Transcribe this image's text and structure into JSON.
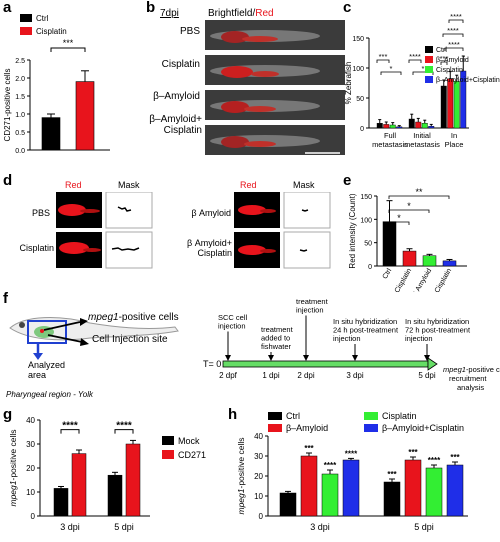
{
  "panels": {
    "a": "a",
    "b": "b",
    "c": "c",
    "d": "d",
    "e": "e",
    "f": "f",
    "g": "g",
    "h": "h"
  },
  "panel_b": {
    "timepoint": "7dpi",
    "title_bf": "Brightfield/",
    "title_red": "Red",
    "rows": [
      "PBS",
      "Cisplatin",
      "β–Amyloid",
      "β–Amyloid+ Cisplatin"
    ],
    "colors": {
      "red": "#e8141c",
      "bg": "#3a3a3a"
    }
  },
  "panel_d": {
    "red": "Red",
    "mask": "Mask",
    "left_rows": [
      "PBS",
      "Cisplatin"
    ],
    "right_rows": [
      "β Amyloid",
      "β Amyloid+ Cisplatin"
    ]
  },
  "panel_f": {
    "pharyngeal": "Pharyngeal region - Yolk",
    "analyzed": "Analyzed area",
    "mpeg": "mpeg1",
    "mpeg_suffix": "-positive cells",
    "injection_site": "Cell Injection site",
    "t0": "T= 0",
    "events": [
      {
        "label": "SCC cell injection",
        "tick": "2 dpf"
      },
      {
        "label": "treatment added to fishwater",
        "tick": "1 dpi"
      },
      {
        "label": "treatment injection",
        "tick": "2 dpi"
      },
      {
        "label": "In situ hybridization 24 h post-treatment injection",
        "tick": "3 dpi"
      },
      {
        "label": "In situ hybridization 72 h post-treatment injection",
        "tick": "5 dpi"
      }
    ],
    "outcome_italic": "mpeg1",
    "outcome_rest": "-positive cell recruitment analysis"
  },
  "chart_data": [
    {
      "id": "a",
      "type": "bar",
      "categories": [
        "Ctrl",
        "Cisplatin"
      ],
      "values": [
        0.9,
        1.9
      ],
      "errors": [
        0.1,
        0.3
      ],
      "ylabel": "CD271-positive cells",
      "ylim": [
        0,
        2.5
      ],
      "yticks": [
        "0.0",
        "0.5",
        "1.0",
        "1.5",
        "2.0",
        "2.5"
      ],
      "legend": [
        "Ctrl",
        "Cisplatin"
      ],
      "colors": [
        "#000000",
        "#e8141c"
      ],
      "significance": "***"
    },
    {
      "id": "c",
      "type": "bar",
      "categories": [
        "Full metastasis",
        "Initial metastasis",
        "In Place"
      ],
      "xlabels": [
        [
          "Full",
          "metastasis"
        ],
        [
          "Initial",
          "metastasis"
        ],
        [
          "In",
          "Place"
        ]
      ],
      "series": [
        {
          "name": "Ctrl",
          "color": "#000000",
          "values": [
            8,
            15,
            70
          ],
          "errors": [
            6,
            8,
            10
          ]
        },
        {
          "name": "β–Amyloid",
          "color": "#e8141c",
          "values": [
            6,
            10,
            82
          ],
          "errors": [
            4,
            6,
            12
          ]
        },
        {
          "name": "Cisplatin",
          "color": "#33ee33",
          "values": [
            5,
            8,
            78
          ],
          "errors": [
            4,
            5,
            10
          ]
        },
        {
          "name": "β–Amyloid+Cisplatin",
          "color": "#1f2ee8",
          "values": [
            2,
            3,
            95
          ],
          "errors": [
            2,
            3,
            25
          ]
        }
      ],
      "ylabel": "% Zebrafish",
      "ylim": [
        0,
        150
      ],
      "yticks": [
        "0",
        "50",
        "100",
        "150"
      ],
      "significance": [
        "***",
        "*",
        "****",
        "*",
        "***",
        "****",
        "****",
        "****"
      ]
    },
    {
      "id": "e",
      "type": "bar",
      "categories": [
        "Ctrl",
        "Cisplatin",
        "β Amyloid",
        "β Amyloid+ Cisplatin"
      ],
      "values": [
        95,
        32,
        22,
        11
      ],
      "errors": [
        45,
        5,
        3,
        3
      ],
      "colors": [
        "#000000",
        "#e8141c",
        "#33ee33",
        "#1f2ee8"
      ],
      "ylabel": "Red intensity (Count)",
      "ylim": [
        0,
        150
      ],
      "yticks": [
        "0",
        "50",
        "100",
        "150"
      ],
      "significance": [
        "*",
        "*",
        "**"
      ]
    },
    {
      "id": "g",
      "type": "bar",
      "categories": [
        "3 dpi",
        "5 dpi"
      ],
      "series": [
        {
          "name": "Mock",
          "color": "#000000",
          "values": [
            11.5,
            17
          ],
          "errors": [
            0.8,
            1.2
          ]
        },
        {
          "name": "CD271",
          "color": "#e8141c",
          "values": [
            26,
            30
          ],
          "errors": [
            1.5,
            1.5
          ]
        }
      ],
      "ylabel_italic": "mpeg1",
      "ylabel_rest": "-positive cells",
      "ylim": [
        0,
        40
      ],
      "yticks": [
        "0",
        "10",
        "20",
        "30",
        "40"
      ],
      "significance": [
        "****",
        "****"
      ]
    },
    {
      "id": "h",
      "type": "bar",
      "categories": [
        "3 dpi",
        "5 dpi"
      ],
      "series": [
        {
          "name": "Ctrl",
          "color": "#000000",
          "values": [
            11.5,
            17
          ],
          "errors": [
            0.8,
            1.5
          ],
          "stars": [
            "",
            "***"
          ]
        },
        {
          "name": "β–Amyloid",
          "color": "#e8141c",
          "values": [
            30,
            28
          ],
          "errors": [
            1.5,
            1.5
          ],
          "stars": [
            "***",
            "***"
          ]
        },
        {
          "name": "Cisplatin",
          "color": "#33ee33",
          "values": [
            21,
            24
          ],
          "errors": [
            2,
            1.5
          ],
          "stars": [
            "****",
            "****"
          ]
        },
        {
          "name": "β–Amyloid+Cisplatin",
          "color": "#1f2ee8",
          "values": [
            28,
            25.5
          ],
          "errors": [
            0.8,
            1.5
          ],
          "stars": [
            "****",
            "***"
          ]
        }
      ],
      "ylabel_italic": "mpeg1",
      "ylabel_rest": "-positive cells",
      "ylim": [
        0,
        40
      ],
      "yticks": [
        "0",
        "10",
        "20",
        "30",
        "40"
      ]
    }
  ]
}
